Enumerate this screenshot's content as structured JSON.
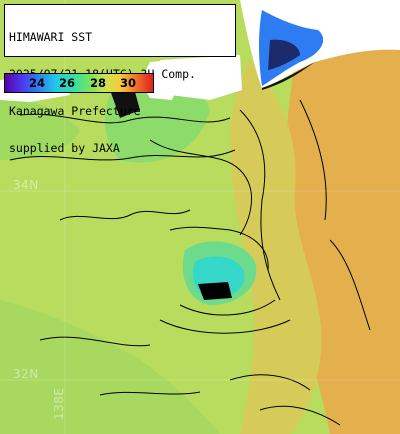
{
  "title_block": {
    "line1": "HIMAWARI SST",
    "line2": "2025/07/21 18(UTC) 3H Comp.",
    "line3": "Kanagawa Prefecture",
    "line4": "supplied by JAXA"
  },
  "legend": {
    "ticks": [
      "24",
      "26",
      "28",
      "30"
    ],
    "tick_values_celsius": [
      24,
      26,
      28,
      30
    ]
  },
  "grid_labels": {
    "lat_34": "34N",
    "lat_32": "32N",
    "lon_138": "138E"
  },
  "colors": {
    "land": "#ffffff",
    "cloud_mask": "#000000",
    "contour": "#000000",
    "sea_warm": "#e8a64b",
    "sea_mid": "#bfe060",
    "sea_cool": "#2fe0a8",
    "sea_cold": "#2d7cf2"
  }
}
